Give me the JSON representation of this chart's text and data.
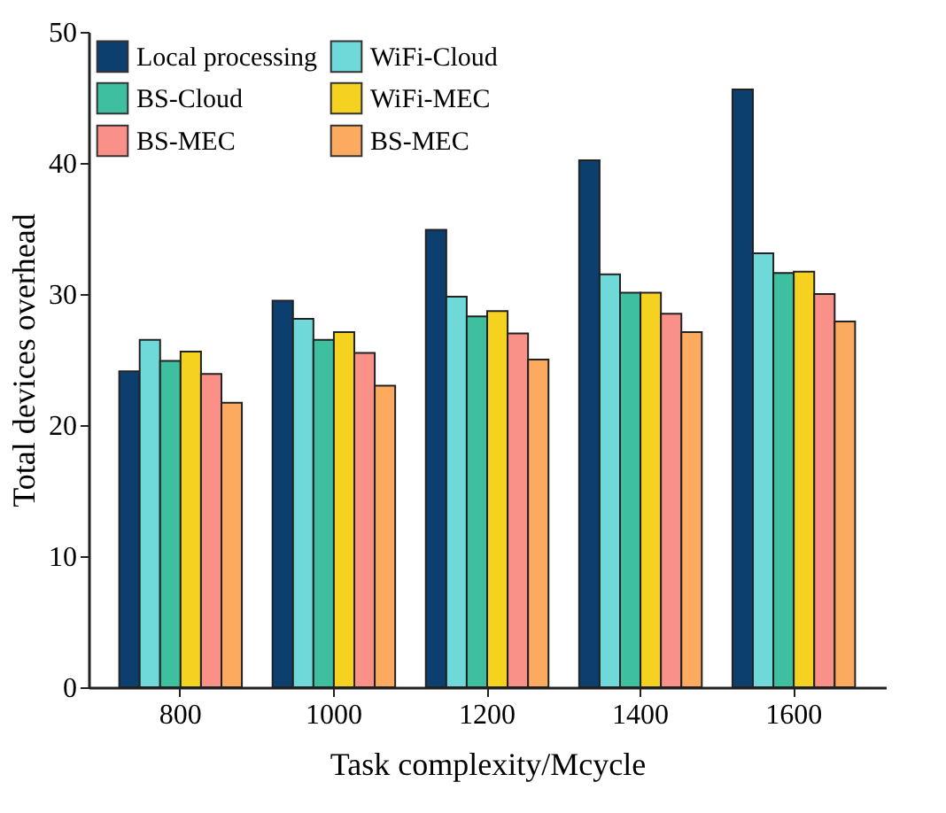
{
  "chart_data": {
    "type": "bar",
    "xlabel": "Task complexity/Mcycle",
    "ylabel": "Total devices overhead",
    "categories": [
      "800",
      "1000",
      "1200",
      "1400",
      "1600"
    ],
    "series": [
      {
        "name": "Local processing",
        "color": "#0c3f6e",
        "values": [
          24.1,
          29.5,
          34.9,
          40.2,
          45.6
        ]
      },
      {
        "name": "WiFi-Cloud",
        "color": "#6fd8d8",
        "values": [
          26.5,
          28.1,
          29.8,
          31.5,
          33.1
        ]
      },
      {
        "name": "BS-Cloud",
        "color": "#3dbfa0",
        "values": [
          24.9,
          26.5,
          28.3,
          30.1,
          31.6
        ]
      },
      {
        "name": "WiFi-MEC",
        "color": "#f5d21f",
        "values": [
          25.6,
          27.1,
          28.7,
          30.1,
          31.7
        ]
      },
      {
        "name": "BS-MEC",
        "color": "#f99189",
        "values": [
          23.9,
          25.5,
          27.0,
          28.5,
          30.0
        ]
      },
      {
        "name": "BS-MEC",
        "color": "#fbaa5f",
        "values": [
          21.7,
          23.0,
          25.0,
          27.1,
          27.9
        ]
      }
    ],
    "ylim": [
      0,
      50
    ],
    "yticks": [
      0,
      10,
      20,
      30,
      40,
      50
    ],
    "grid": false,
    "legend": "top left"
  }
}
